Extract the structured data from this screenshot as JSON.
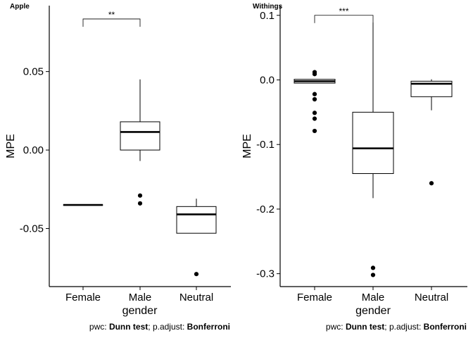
{
  "chart_data": [
    {
      "type": "box",
      "title": "Apple",
      "xlabel": "gender",
      "ylabel": "MPE",
      "ylim": [
        -0.087,
        0.092
      ],
      "yticks": [
        "0.05",
        "0.00",
        "-0.05"
      ],
      "ytick_values": [
        0.05,
        0.0,
        -0.05
      ],
      "categories": [
        "Female",
        "Male",
        "Neutral"
      ],
      "boxes": [
        {
          "category": "Female",
          "q1": -0.035,
          "median": -0.035,
          "q3": -0.035,
          "whisker_low": -0.035,
          "whisker_high": -0.035,
          "outliers": []
        },
        {
          "category": "Male",
          "q1": 0.0,
          "median": 0.0115,
          "q3": 0.018,
          "whisker_low": -0.007,
          "whisker_high": 0.045,
          "outliers": [
            -0.029,
            -0.034
          ]
        },
        {
          "category": "Neutral",
          "q1": -0.053,
          "median": -0.041,
          "q3": -0.036,
          "whisker_low": -0.053,
          "whisker_high": -0.031,
          "outliers": [
            -0.079
          ]
        }
      ],
      "significance": [
        {
          "from": "Female",
          "to": "Male",
          "label": "**",
          "y": 0.0835
        }
      ],
      "caption_parts": [
        {
          "text": "pwc: ",
          "bold": false
        },
        {
          "text": "Dunn test",
          "bold": true
        },
        {
          "text": "; p.adjust: ",
          "bold": false
        },
        {
          "text": "Bonferroni",
          "bold": true
        }
      ]
    },
    {
      "type": "box",
      "title": "Withings",
      "xlabel": "gender",
      "ylabel": "MPE",
      "ylim": [
        -0.32,
        0.115
      ],
      "yticks": [
        "0.1",
        "0.0",
        "-0.1",
        "-0.2",
        "-0.3"
      ],
      "ytick_values": [
        0.1,
        0.0,
        -0.1,
        -0.2,
        -0.3
      ],
      "categories": [
        "Female",
        "Male",
        "Neutral"
      ],
      "boxes": [
        {
          "category": "Female",
          "q1": -0.005,
          "median": -0.002,
          "q3": 0.001,
          "whisker_low": -0.005,
          "whisker_high": 0.001,
          "outliers": [
            0.012,
            0.009,
            -0.022,
            -0.03,
            -0.051,
            -0.06,
            -0.079
          ]
        },
        {
          "category": "Male",
          "q1": -0.145,
          "median": -0.106,
          "q3": -0.05,
          "whisker_low": -0.183,
          "whisker_high": 0.089,
          "outliers": [
            -0.291,
            -0.302
          ]
        },
        {
          "category": "Neutral",
          "q1": -0.026,
          "median": -0.006,
          "q3": -0.002,
          "whisker_low": -0.047,
          "whisker_high": 0.001,
          "outliers": [
            -0.16
          ]
        }
      ],
      "significance": [
        {
          "from": "Female",
          "to": "Male",
          "label": "***",
          "y": 0.1
        }
      ],
      "caption_parts": [
        {
          "text": "pwc: ",
          "bold": false
        },
        {
          "text": "Dunn test",
          "bold": true
        },
        {
          "text": "; p.adjust: ",
          "bold": false
        },
        {
          "text": "Bonferroni",
          "bold": true
        }
      ]
    }
  ]
}
